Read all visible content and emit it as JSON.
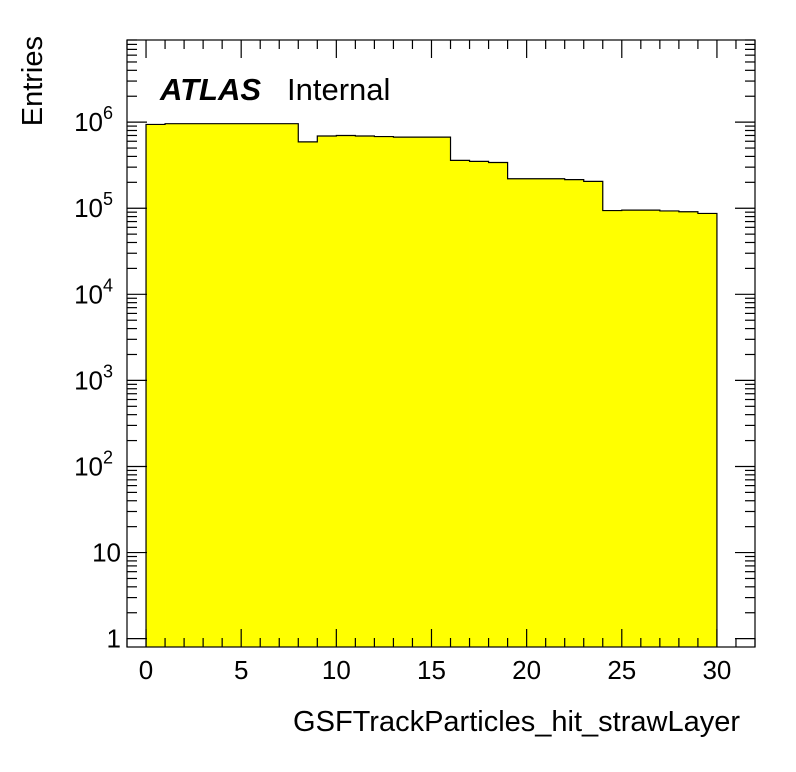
{
  "chart_data": {
    "type": "histogram",
    "xlabel": "GSFTrackParticles_hit_strawLayer",
    "ylabel": "Entries",
    "atlas_label": "ATLAS",
    "atlas_status": "Internal",
    "xlim": [
      -1,
      32
    ],
    "ylim": [
      0.8,
      9000000
    ],
    "yscale": "log",
    "x_ticks": [
      "0",
      "5",
      "10",
      "15",
      "20",
      "25",
      "30"
    ],
    "y_ticks": [
      "1",
      "10",
      "10^2",
      "10^3",
      "10^4",
      "10^5",
      "10^6"
    ],
    "fill_color": "#ffff00",
    "bins": [
      {
        "low": 0,
        "high": 1,
        "value": 940000
      },
      {
        "low": 1,
        "high": 2,
        "value": 960000
      },
      {
        "low": 2,
        "high": 3,
        "value": 960000
      },
      {
        "low": 3,
        "high": 4,
        "value": 960000
      },
      {
        "low": 4,
        "high": 5,
        "value": 960000
      },
      {
        "low": 5,
        "high": 6,
        "value": 960000
      },
      {
        "low": 6,
        "high": 7,
        "value": 960000
      },
      {
        "low": 7,
        "high": 8,
        "value": 960000
      },
      {
        "low": 8,
        "high": 9,
        "value": 590000
      },
      {
        "low": 9,
        "high": 10,
        "value": 690000
      },
      {
        "low": 10,
        "high": 11,
        "value": 700000
      },
      {
        "low": 11,
        "high": 12,
        "value": 690000
      },
      {
        "low": 12,
        "high": 13,
        "value": 680000
      },
      {
        "low": 13,
        "high": 14,
        "value": 670000
      },
      {
        "low": 14,
        "high": 15,
        "value": 670000
      },
      {
        "low": 15,
        "high": 16,
        "value": 670000
      },
      {
        "low": 16,
        "high": 17,
        "value": 360000
      },
      {
        "low": 17,
        "high": 18,
        "value": 350000
      },
      {
        "low": 18,
        "high": 19,
        "value": 340000
      },
      {
        "low": 19,
        "high": 20,
        "value": 220000
      },
      {
        "low": 20,
        "high": 21,
        "value": 220000
      },
      {
        "low": 21,
        "high": 22,
        "value": 220000
      },
      {
        "low": 22,
        "high": 23,
        "value": 215000
      },
      {
        "low": 23,
        "high": 24,
        "value": 205000
      },
      {
        "low": 24,
        "high": 25,
        "value": 94000
      },
      {
        "low": 25,
        "high": 26,
        "value": 95000
      },
      {
        "low": 26,
        "high": 27,
        "value": 95000
      },
      {
        "low": 27,
        "high": 28,
        "value": 93000
      },
      {
        "low": 28,
        "high": 29,
        "value": 91000
      },
      {
        "low": 29,
        "high": 30,
        "value": 87000
      }
    ]
  }
}
